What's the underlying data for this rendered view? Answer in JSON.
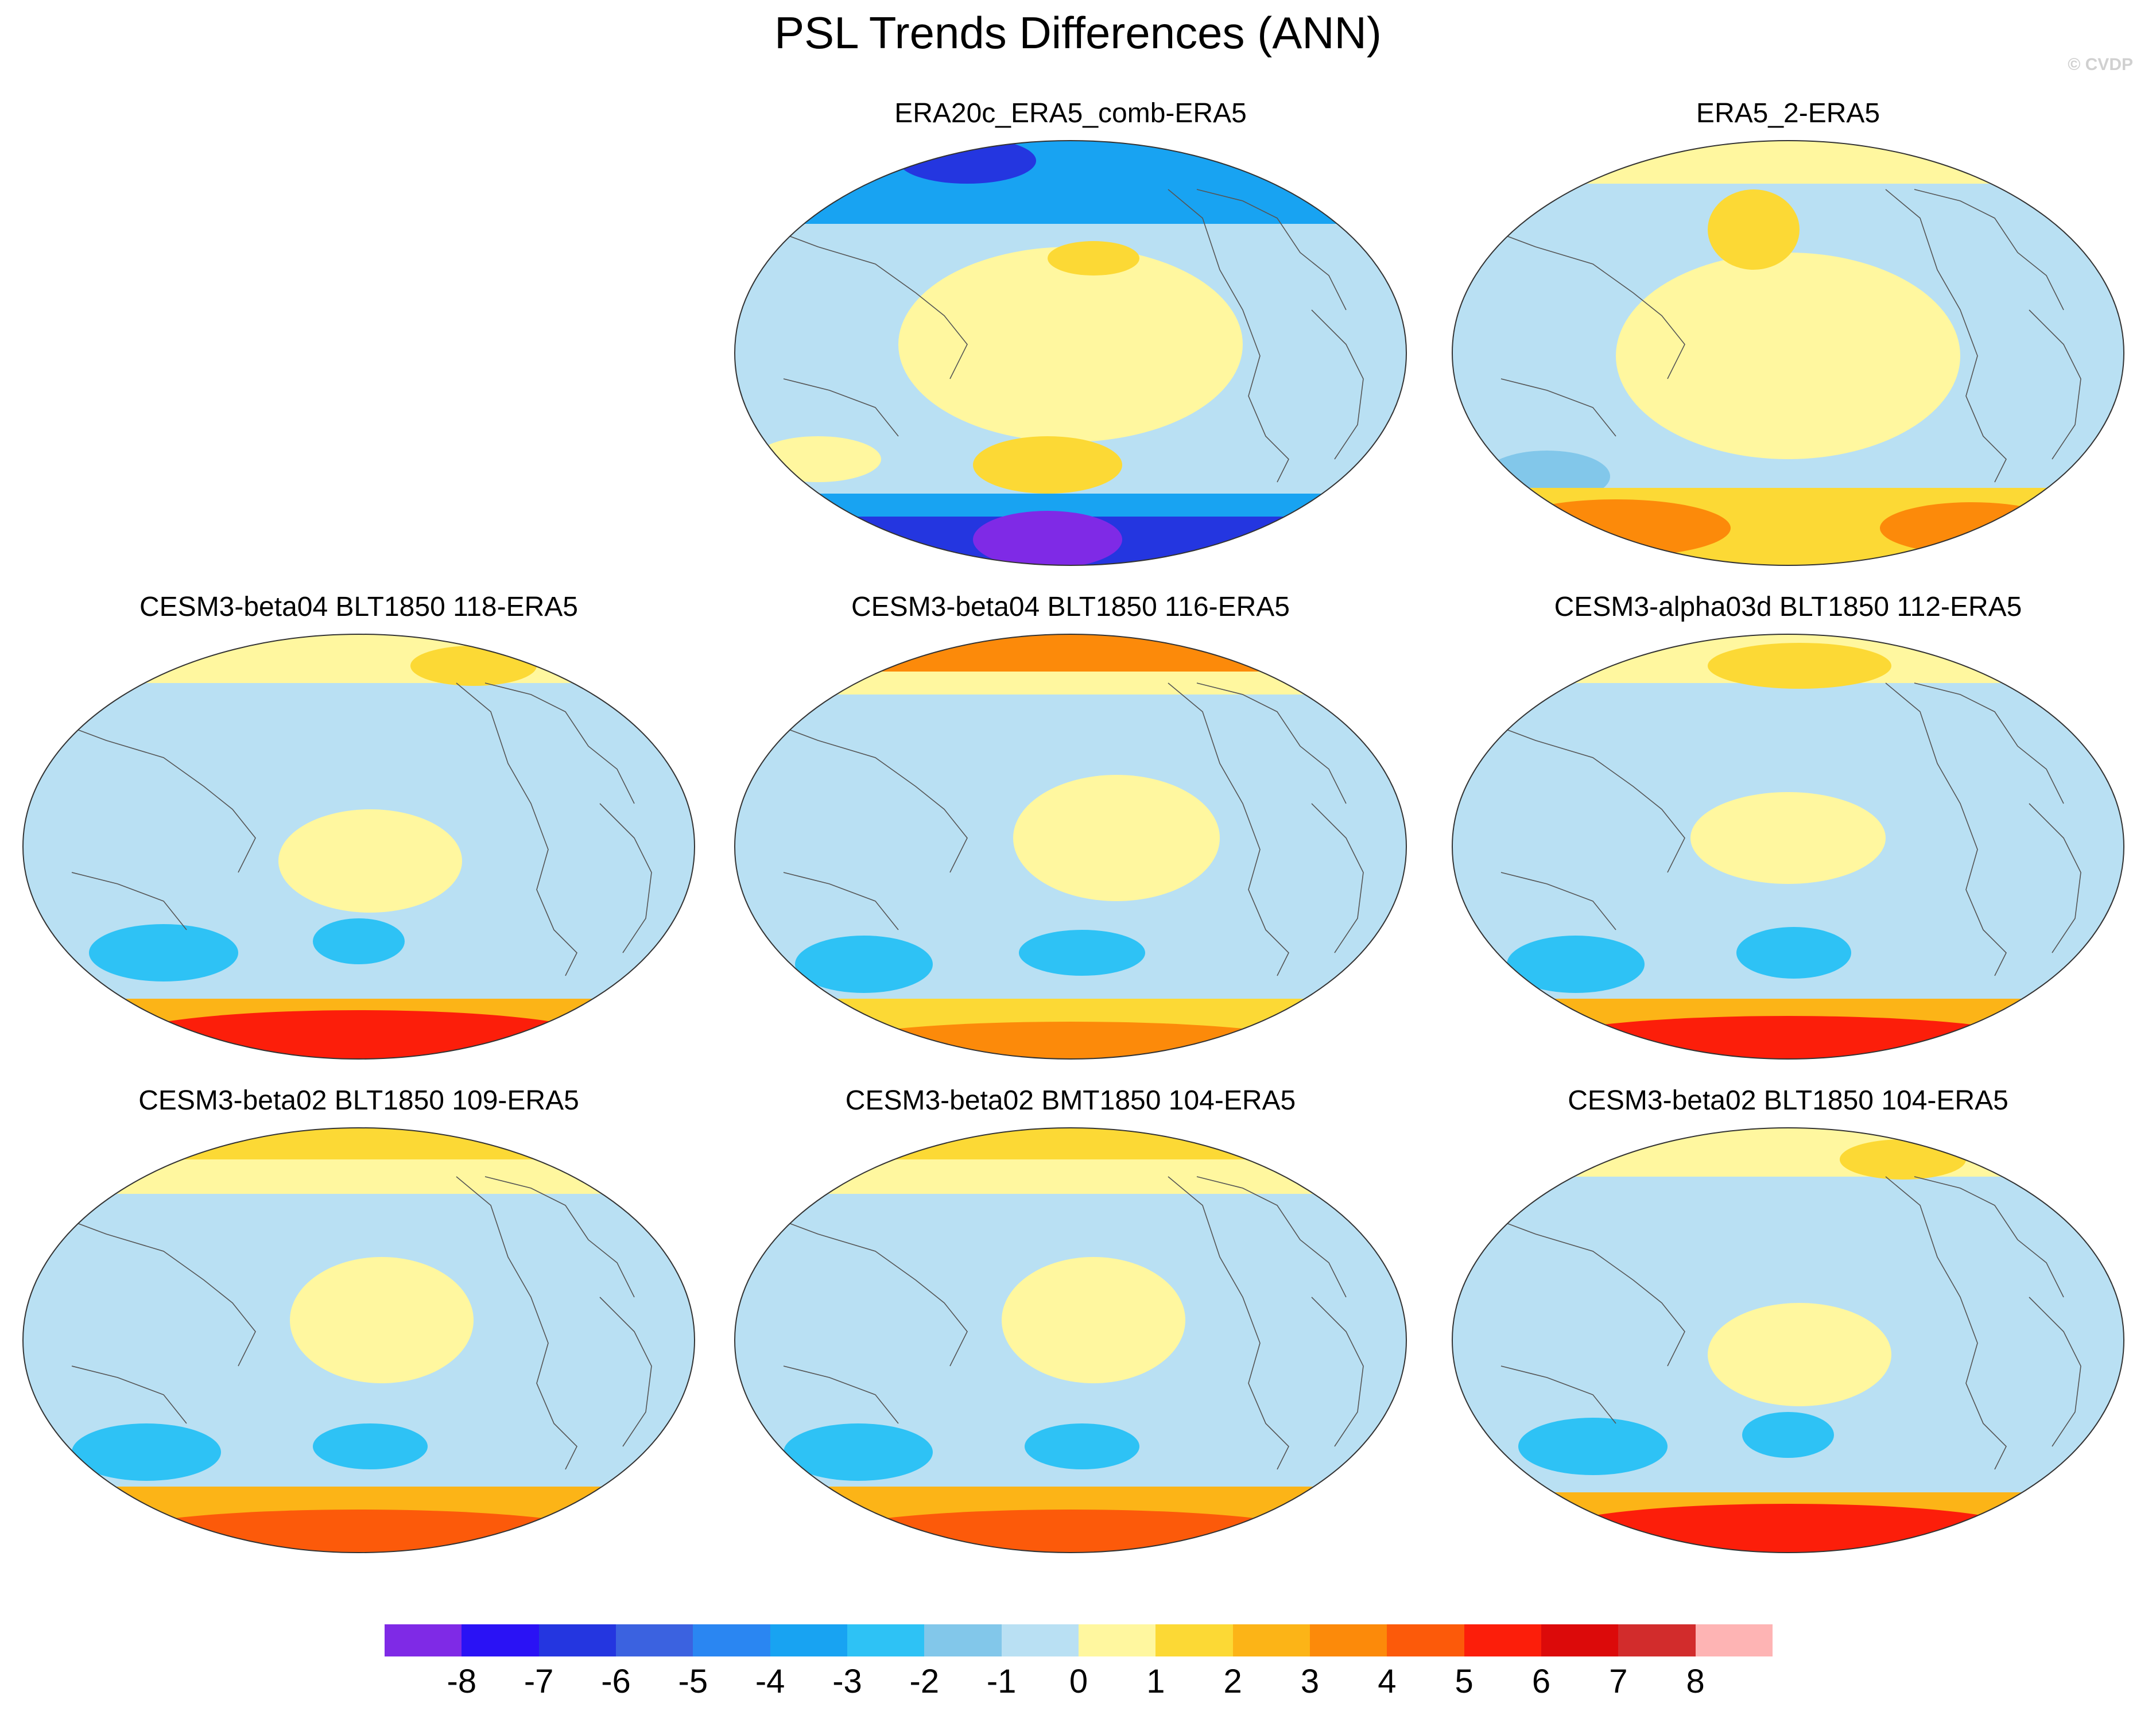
{
  "figure": {
    "title": "PSL Trends Differences (ANN)",
    "credit": "© CVDP"
  },
  "colors": {
    "bands": [
      "#7f2ae6",
      "#2a12f5",
      "#2436e0",
      "#3b62e0",
      "#2a86f2",
      "#18a3f2",
      "#2ec2f5",
      "#82c7ea",
      "#b9e0f3",
      "#fff79f",
      "#fcd935",
      "#fcb417",
      "#fc8a0a",
      "#fc5a0a",
      "#fc1e0a",
      "#dc0a0a",
      "#d22c2c",
      "#feb4b4"
    ],
    "land_outline": "#555555"
  },
  "colorbar": {
    "labels": [
      "-8",
      "-7",
      "-6",
      "-5",
      "-4",
      "-3",
      "-2",
      "-1",
      "0",
      "1",
      "2",
      "3",
      "4",
      "5",
      "6",
      "7",
      "8"
    ]
  },
  "panels": [
    {
      "title": "ERA20c_ERA5_comb-ERA5",
      "pattern": "era20c"
    },
    {
      "title": "ERA5_2-ERA5",
      "pattern": "era5_2"
    },
    {
      "title": "CESM3-beta04 BLT1850 118-ERA5",
      "pattern": "model_a"
    },
    {
      "title": "CESM3-beta04 BLT1850 116-ERA5",
      "pattern": "model_b"
    },
    {
      "title": "CESM3-alpha03d BLT1850 112-ERA5",
      "pattern": "model_c"
    },
    {
      "title": "CESM3-beta02 BLT1850 109-ERA5",
      "pattern": "model_d"
    },
    {
      "title": "CESM3-beta02 BMT1850 104-ERA5",
      "pattern": "model_d"
    },
    {
      "title": "CESM3-beta02 BLT1850 104-ERA5",
      "pattern": "model_a"
    }
  ]
}
